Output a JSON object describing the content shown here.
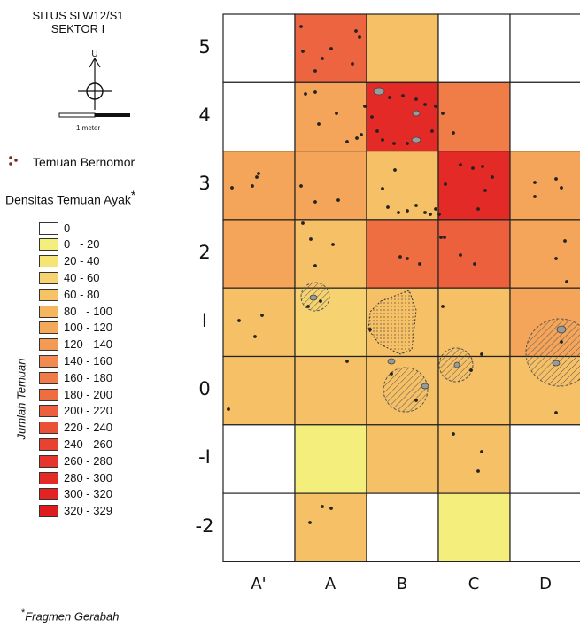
{
  "title": {
    "line1": "SITUS SLW12/S1",
    "line2": "SEKTOR I"
  },
  "north": {
    "label": "U",
    "icon": "north-arrow-icon"
  },
  "scale_bar": {
    "label": "1 meter"
  },
  "legend": {
    "finds_label": "Temuan Bernomor",
    "finds_icon": "dot-cluster-icon",
    "density_title": "Densitas Temuan Ayak",
    "density_star": "*",
    "axis_label": "Jumlah Temuan",
    "classes": [
      {
        "label": "0",
        "color": "#ffffff"
      },
      {
        "label": "0   - 20",
        "color": "#f4ef7c"
      },
      {
        "label": "20 - 40",
        "color": "#f5e577"
      },
      {
        "label": "40 - 60",
        "color": "#f6d270"
      },
      {
        "label": "60 - 80",
        "color": "#f6c467"
      },
      {
        "label": "80   - 100",
        "color": "#f5b660"
      },
      {
        "label": "100 - 120",
        "color": "#f4a85a"
      },
      {
        "label": "120 - 140",
        "color": "#f39a55"
      },
      {
        "label": "140 - 160",
        "color": "#f28b4f"
      },
      {
        "label": "160 - 180",
        "color": "#f07d48"
      },
      {
        "label": "180 - 200",
        "color": "#ee6e42"
      },
      {
        "label": "200 - 220",
        "color": "#ec603d"
      },
      {
        "label": "220 - 240",
        "color": "#ea5237"
      },
      {
        "label": "240 - 260",
        "color": "#e84331"
      },
      {
        "label": "260 - 280",
        "color": "#e6352c"
      },
      {
        "label": "280 - 300",
        "color": "#e42a27"
      },
      {
        "label": "300 - 320",
        "color": "#e22223"
      },
      {
        "label": "320 - 329",
        "color": "#e01b1f"
      }
    ]
  },
  "footnote": {
    "star": "*",
    "text": "Fragmen Gerabah"
  },
  "grid": {
    "columns": [
      "A'",
      "A",
      "B",
      "C",
      "D"
    ],
    "rows": [
      "5",
      "4",
      "3",
      "2",
      "I",
      "0",
      "-I",
      "-2"
    ],
    "cell_colors": [
      [
        "#ffffff",
        "#ec6540",
        "#f6c066",
        "#ffffff",
        "#ffffff"
      ],
      [
        "#ffffff",
        "#f4a55a",
        "#e42a27",
        "#f07d48",
        "#ffffff"
      ],
      [
        "#f4a55a",
        "#f4a55a",
        "#f6c066",
        "#e42a27",
        "#f4a55a"
      ],
      [
        "#f4a55a",
        "#f6c066",
        "#ee6e42",
        "#ec603d",
        "#f4a55a"
      ],
      [
        "#f6c066",
        "#f6d270",
        "#f6c066",
        "#f6c066",
        "#f4a55a"
      ],
      [
        "#f6c066",
        "#f6c066",
        "#f6c066",
        "#f6c066",
        "#f6c066"
      ],
      [
        "#ffffff",
        "#f4ef7c",
        "#f6c066",
        "#f6c066",
        "#ffffff"
      ],
      [
        "#ffffff",
        "#f6c066",
        "#ffffff",
        "#f4ef7c",
        "#ffffff"
      ]
    ]
  },
  "colors": {
    "dot": "#222222",
    "grid_line": "#222222",
    "hatch": "#555555"
  }
}
